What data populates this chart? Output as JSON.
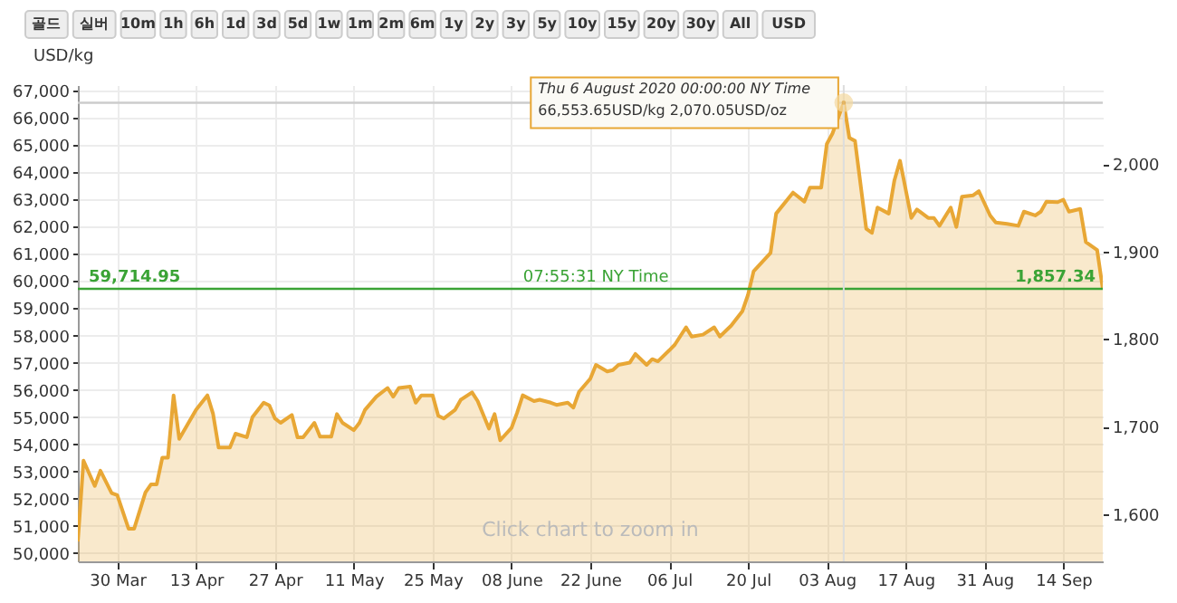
{
  "chart_data": {
    "type": "area",
    "ylabel": "USD/kg",
    "color": "#e8a735",
    "x": [
      "2020-03-23",
      "2020-03-24",
      "2020-03-26",
      "2020-03-27",
      "2020-03-29",
      "2020-03-30",
      "2020-04-01",
      "2020-04-02",
      "2020-04-04",
      "2020-04-05",
      "2020-04-06",
      "2020-04-07",
      "2020-04-08",
      "2020-04-09",
      "2020-04-10",
      "2020-04-13",
      "2020-04-15",
      "2020-04-16",
      "2020-04-17",
      "2020-04-19",
      "2020-04-20",
      "2020-04-22",
      "2020-04-23",
      "2020-04-25",
      "2020-04-26",
      "2020-04-27",
      "2020-04-28",
      "2020-04-30",
      "2020-05-01",
      "2020-05-02",
      "2020-05-04",
      "2020-05-05",
      "2020-05-07",
      "2020-05-08",
      "2020-05-09",
      "2020-05-11",
      "2020-05-12",
      "2020-05-13",
      "2020-05-15",
      "2020-05-17",
      "2020-05-18",
      "2020-05-19",
      "2020-05-21",
      "2020-05-22",
      "2020-05-23",
      "2020-05-25",
      "2020-05-26",
      "2020-05-27",
      "2020-05-29",
      "2020-05-30",
      "2020-06-01",
      "2020-06-02",
      "2020-06-04",
      "2020-06-05",
      "2020-06-06",
      "2020-06-08",
      "2020-06-09",
      "2020-06-10",
      "2020-06-12",
      "2020-06-13",
      "2020-06-15",
      "2020-06-16",
      "2020-06-18",
      "2020-06-19",
      "2020-06-20",
      "2020-06-22",
      "2020-06-23",
      "2020-06-25",
      "2020-06-26",
      "2020-06-27",
      "2020-06-29",
      "2020-06-30",
      "2020-07-02",
      "2020-07-03",
      "2020-07-04",
      "2020-07-06",
      "2020-07-07",
      "2020-07-09",
      "2020-07-10",
      "2020-07-12",
      "2020-07-14",
      "2020-07-15",
      "2020-07-17",
      "2020-07-19",
      "2020-07-20",
      "2020-07-21",
      "2020-07-24",
      "2020-07-25",
      "2020-07-28",
      "2020-07-30",
      "2020-07-31",
      "2020-08-02",
      "2020-08-03",
      "2020-08-04",
      "2020-08-06",
      "2020-08-07",
      "2020-08-08",
      "2020-08-10",
      "2020-08-11",
      "2020-08-12",
      "2020-08-14",
      "2020-08-15",
      "2020-08-16",
      "2020-08-18",
      "2020-08-19",
      "2020-08-21",
      "2020-08-22",
      "2020-08-23",
      "2020-08-25",
      "2020-08-26",
      "2020-08-27",
      "2020-08-29",
      "2020-08-30",
      "2020-09-01",
      "2020-09-02",
      "2020-09-04",
      "2020-09-06",
      "2020-09-07",
      "2020-09-09",
      "2020-09-10",
      "2020-09-11",
      "2020-09-13",
      "2020-09-14",
      "2020-09-15",
      "2020-09-17",
      "2020-09-18",
      "2020-09-20",
      "2020-09-21"
    ],
    "values": [
      50430,
      53400,
      52470,
      53030,
      52210,
      52130,
      50900,
      50900,
      52230,
      52530,
      52530,
      53510,
      53510,
      55800,
      54200,
      55270,
      55800,
      55130,
      53880,
      53880,
      54390,
      54260,
      55000,
      55530,
      55430,
      54950,
      54790,
      55080,
      54260,
      54260,
      54790,
      54280,
      54280,
      55110,
      54790,
      54520,
      54790,
      55270,
      55750,
      56070,
      55750,
      56070,
      56120,
      55530,
      55800,
      55800,
      55050,
      54950,
      55270,
      55640,
      55910,
      55590,
      54580,
      55110,
      54150,
      54600,
      55160,
      55800,
      55590,
      55640,
      55530,
      55450,
      55530,
      55350,
      55930,
      56410,
      56920,
      56680,
      56730,
      56920,
      57000,
      57320,
      56920,
      57130,
      57050,
      57450,
      57660,
      58300,
      57960,
      58030,
      58300,
      57960,
      58360,
      58890,
      59490,
      60360,
      61030,
      62480,
      63250,
      62920,
      63430,
      63430,
      65040,
      65420,
      66553.65,
      65260,
      65150,
      61920,
      61770,
      62700,
      62480,
      63700,
      64420,
      62320,
      62630,
      62320,
      62320,
      62030,
      62700,
      61990,
      63100,
      63150,
      63300,
      62410,
      62150,
      62100,
      62030,
      62550,
      62410,
      62550,
      62920,
      62900,
      62990,
      62550,
      62650,
      61430,
      61140,
      59714.95
    ],
    "xlim": [
      "2020-03-23",
      "2020-09-21"
    ],
    "xticks": [
      {
        "value": "2020-03-30",
        "label": "30 Mar"
      },
      {
        "value": "2020-04-13",
        "label": "13 Apr"
      },
      {
        "value": "2020-04-27",
        "label": "27 Apr"
      },
      {
        "value": "2020-05-11",
        "label": "11 May"
      },
      {
        "value": "2020-05-25",
        "label": "25 May"
      },
      {
        "value": "2020-06-08",
        "label": "08 June"
      },
      {
        "value": "2020-06-22",
        "label": "22 June"
      },
      {
        "value": "2020-07-06",
        "label": "06 Jul"
      },
      {
        "value": "2020-07-20",
        "label": "20 Jul"
      },
      {
        "value": "2020-08-03",
        "label": "03 Aug"
      },
      {
        "value": "2020-08-17",
        "label": "17 Aug"
      },
      {
        "value": "2020-08-31",
        "label": "31 Aug"
      },
      {
        "value": "2020-09-14",
        "label": "14 Sep"
      }
    ],
    "ylim": [
      49700,
      67200
    ],
    "yticks": [
      {
        "value": 50000,
        "label": "50,000"
      },
      {
        "value": 51000,
        "label": "51,000"
      },
      {
        "value": 52000,
        "label": "52,000"
      },
      {
        "value": 53000,
        "label": "53,000"
      },
      {
        "value": 54000,
        "label": "54,000"
      },
      {
        "value": 55000,
        "label": "55,000"
      },
      {
        "value": 56000,
        "label": "56,000"
      },
      {
        "value": 57000,
        "label": "57,000"
      },
      {
        "value": 58000,
        "label": "58,000"
      },
      {
        "value": 59000,
        "label": "59,000"
      },
      {
        "value": 60000,
        "label": "60,000"
      },
      {
        "value": 61000,
        "label": "61,000"
      },
      {
        "value": 62000,
        "label": "62,000"
      },
      {
        "value": 63000,
        "label": "63,000"
      },
      {
        "value": 64000,
        "label": "64,000"
      },
      {
        "value": 65000,
        "label": "65,000"
      },
      {
        "value": 66000,
        "label": "66,000"
      },
      {
        "value": 67000,
        "label": "67,000"
      }
    ],
    "y2lim": [
      1545.84,
      2090.16
    ],
    "y2ticks": [
      {
        "value": 1600,
        "label": "1,600"
      },
      {
        "value": 1700,
        "label": "1,700"
      },
      {
        "value": 1800,
        "label": "1,800"
      },
      {
        "value": 1900,
        "label": "1,900"
      },
      {
        "value": 2000,
        "label": "2,000"
      }
    ],
    "grid": true,
    "ref_lines": [
      {
        "axis": "y",
        "value": 59714.95,
        "label": "59,714.95",
        "color": "#3aa335"
      },
      {
        "axis": "y",
        "value": 66553.65,
        "color": "#cccccc"
      },
      {
        "axis": "x",
        "value": "2020-08-06",
        "color": "#dddddd"
      }
    ],
    "annotations": [
      {
        "text": "Thu 6 August 2020 00:00:00 NY Time\n66,553.65USD/kg 2,070.05USD/oz",
        "x": "2020-08-06",
        "y": 66553.65
      },
      {
        "text": "07:55:31 NY Time",
        "x": "2020-06-23",
        "y": 59714.95
      },
      {
        "text": "1,857.34",
        "x": "2020-09-21",
        "y": 59714.95
      },
      "Click chart to zoom in",
      "골드",
      "실버",
      "10m",
      "1h",
      "6h",
      "1d",
      "3d",
      "5d",
      "1w",
      "1m",
      "2m",
      "6m",
      "1y",
      "2y",
      "3y",
      "5y",
      "10y",
      "15y",
      "20y",
      "30y",
      "All",
      "USD"
    ]
  }
}
